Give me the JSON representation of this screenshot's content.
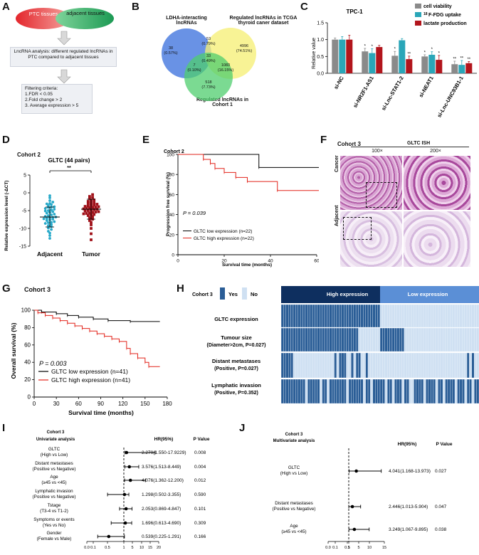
{
  "panels": {
    "A": "A",
    "B": "B",
    "C": "C",
    "D": "D",
    "E": "E",
    "F": "F",
    "G": "G",
    "H": "H",
    "I": "I",
    "J": "J"
  },
  "A": {
    "ptc": "PTC tissues",
    "adjacent": "adjacent tissues",
    "analysis": "LncRNA analysis: different regulated lncRNAs in PTC compared to adjacent tissues",
    "criteria_title": "Filtering criteria:",
    "criteria": [
      "1.FDR < 0.05",
      "2.Fold change > 2",
      "3. Average expression > 5"
    ]
  },
  "B": {
    "set1": "LDHA-interacting lncRNAs",
    "set2": "Regulated lncRNAs in TCGA thyroid caner dataset",
    "set3": "Regulated lncRNAs in Cohort 1",
    "regions": [
      {
        "n": "38",
        "p": "(0.57%)"
      },
      {
        "n": "53",
        "p": "(0.79%)"
      },
      {
        "n": "4996",
        "p": "(74.51%)"
      },
      {
        "n": "33",
        "p": "(0.49%)"
      },
      {
        "n": "7",
        "p": "(0.10%)"
      },
      {
        "n": "1083",
        "p": "(16.15%)"
      },
      {
        "n": "518",
        "p": "(7.73%)"
      }
    ]
  },
  "C": {
    "title": "TPC-1",
    "ylabel": "Relative value",
    "legend": [
      "cell viability",
      "F-FDG uptake",
      "lactate production"
    ],
    "legend_sup": "18",
    "colors": [
      "#8a8a8a",
      "#2aa6b8",
      "#b2151c"
    ],
    "chart_data": {
      "type": "bar",
      "title": "TPC-1",
      "ylabel": "Relative value",
      "ylim": [
        0,
        1.5
      ],
      "yticks": [
        "0.0",
        "0.5",
        "1.0",
        "1.5"
      ],
      "categories": [
        "si-NC",
        "si-NR2F1-AS1",
        "si-Lnc-STAT1-2",
        "si-NEAT1",
        "si-Lnc-UNC93B1-1"
      ],
      "series": [
        {
          "name": "cell viability",
          "values": [
            1.0,
            0.65,
            0.52,
            0.5,
            0.27
          ]
        },
        {
          "name": "18F-FDG uptake",
          "values": [
            1.0,
            0.6,
            0.98,
            0.55,
            0.25
          ]
        },
        {
          "name": "lactate production",
          "values": [
            1.0,
            0.78,
            0.42,
            0.4,
            0.3
          ]
        }
      ],
      "sig": [
        [
          "",
          "",
          ""
        ],
        [
          "*",
          "*",
          ""
        ],
        [
          "*",
          "",
          "**"
        ],
        [
          "*",
          "*",
          "*"
        ],
        [
          "**",
          "**",
          "**"
        ]
      ]
    }
  },
  "D": {
    "cohort": "Cohort 2",
    "title": "GLTC (44 pairs)",
    "sig": "**",
    "ylabel": "Relative expression level (-ΔCT)",
    "chart_data": {
      "type": "scatter",
      "ylim": [
        -15,
        5
      ],
      "yticks": [
        "5",
        "0",
        "-5",
        "-10",
        "-15"
      ],
      "categories": [
        "Adjacent",
        "Tumor"
      ],
      "means": [
        -6.8,
        -4.6
      ],
      "adjacent": [
        -0.8,
        -1.4,
        -2.2,
        -2.6,
        -3.0,
        -3.3,
        -3.6,
        -3.9,
        -4.1,
        -4.4,
        -4.6,
        -4.8,
        -5.0,
        -5.3,
        -5.5,
        -5.7,
        -6.0,
        -6.2,
        -6.4,
        -6.6,
        -6.8,
        -7.0,
        -7.2,
        -7.4,
        -7.6,
        -7.8,
        -8.1,
        -8.3,
        -8.6,
        -8.9,
        -9.2,
        -9.5,
        -9.9,
        -10.3,
        -10.8,
        -11.3,
        -12.0,
        -12.8,
        -5.1,
        -6.9,
        -7.3,
        -8.4,
        -4.0,
        -3.1
      ],
      "tumor": [
        -0.5,
        -1.0,
        -1.6,
        -2.0,
        -2.4,
        -2.7,
        -3.0,
        -3.2,
        -3.5,
        -3.7,
        -3.9,
        -4.1,
        -4.3,
        -4.5,
        -4.7,
        -4.9,
        -5.1,
        -5.3,
        -5.5,
        -5.7,
        -5.9,
        -6.1,
        -6.4,
        -6.7,
        -7.0,
        -7.4,
        -7.8,
        -8.3,
        -9.0,
        -10.0,
        -11.5,
        -13.2,
        -2.9,
        -3.4,
        -3.8,
        -4.2,
        -4.6,
        -5.0,
        -5.4,
        -5.8,
        -6.2,
        -1.3,
        -2.2,
        -4.0
      ]
    }
  },
  "E": {
    "cohort": "Cohort 2",
    "ylabel": "Progression free survival (%)",
    "xlabel": "Survival time (months)",
    "pvalue": "P = 0.039",
    "legend": [
      "GLTC low expression (n=22)",
      "GLTC high expression (n=22)"
    ],
    "chart_data": {
      "type": "line",
      "xlim": [
        0,
        60
      ],
      "ylim": [
        0,
        100
      ],
      "xticks": [
        "0",
        "20",
        "40",
        "60"
      ],
      "yticks": [
        "0",
        "20",
        "40",
        "60",
        "80",
        "100"
      ],
      "series": [
        {
          "name": "GLTC low expression (n=22)",
          "x": [
            0,
            35,
            35,
            63
          ],
          "y": [
            100,
            100,
            87,
            87
          ]
        },
        {
          "name": "GLTC high expression (n=22)",
          "x": [
            0,
            11,
            11,
            14,
            14,
            16,
            16,
            20,
            20,
            25,
            25,
            30,
            30,
            43,
            43,
            65
          ],
          "y": [
            100,
            100,
            95,
            95,
            91,
            91,
            86,
            86,
            82,
            82,
            77,
            77,
            73,
            73,
            64,
            64
          ]
        }
      ]
    }
  },
  "F": {
    "cohort": "Cohort 3",
    "title": "GLTC ISH",
    "mag": [
      "100×",
      "200×"
    ],
    "rows": [
      "Cancer",
      "Adjacent"
    ]
  },
  "G": {
    "cohort": "Cohort 3",
    "ylabel": "Overall survival (%)",
    "xlabel": "Survival time (months)",
    "pvalue": "P = 0.003",
    "legend": [
      "GLTC low expression (n=41)",
      "GLTC high expression (n=41)"
    ],
    "chart_data": {
      "type": "line",
      "xlim": [
        0,
        180
      ],
      "ylim": [
        0,
        100
      ],
      "xticks": [
        "0",
        "30",
        "60",
        "90",
        "120",
        "150",
        "180"
      ],
      "yticks": [
        "0",
        "20",
        "40",
        "60",
        "80",
        "100"
      ],
      "series": [
        {
          "name": "GLTC low expression (n=41)",
          "x": [
            0,
            10,
            10,
            30,
            30,
            45,
            45,
            60,
            60,
            80,
            80,
            100,
            100,
            130,
            130,
            170
          ],
          "y": [
            100,
            100,
            98,
            98,
            96,
            96,
            94,
            94,
            92,
            92,
            90,
            90,
            88,
            88,
            87,
            87
          ]
        },
        {
          "name": "GLTC high expression (n=41)",
          "x": [
            0,
            5,
            5,
            15,
            15,
            25,
            25,
            35,
            35,
            45,
            45,
            55,
            55,
            65,
            65,
            75,
            75,
            85,
            85,
            95,
            95,
            105,
            105,
            115,
            115,
            125,
            125,
            130,
            130,
            140,
            140,
            150,
            150,
            155,
            155,
            170
          ],
          "y": [
            100,
            100,
            97,
            97,
            94,
            94,
            91,
            91,
            88,
            88,
            85,
            85,
            82,
            82,
            79,
            79,
            76,
            76,
            73,
            73,
            70,
            70,
            67,
            67,
            64,
            64,
            56,
            56,
            50,
            50,
            45,
            45,
            40,
            40,
            35,
            35
          ]
        }
      ]
    }
  },
  "H": {
    "cohort": "Cohort 3",
    "yes": "Yes",
    "no": "No",
    "groups": [
      "High expression",
      "Low expression"
    ],
    "colors": {
      "high": "#0e2f5f",
      "low": "#5b8fd6",
      "yes": "#2a5d96",
      "no": "#cfe0f2"
    },
    "rows": [
      {
        "label": "GLTC expression",
        "sub": ""
      },
      {
        "label": "Tumour size",
        "sub": "(Diameter>2cm, P=0.027)"
      },
      {
        "label": "Distant metastases",
        "sub": "(Positive, P=0.027)"
      },
      {
        "label": "Lymphatic invasion",
        "sub": "(Positive, P=0.352)"
      }
    ],
    "chart_data": {
      "type": "heatmap",
      "n_high": 41,
      "n_low": 41,
      "tumour_size_yes": [
        1,
        1,
        1,
        1,
        1,
        1,
        1,
        1,
        1,
        1,
        1,
        1,
        1,
        1,
        1,
        1,
        1,
        1,
        1,
        1,
        1,
        1,
        1,
        1,
        1,
        1,
        1,
        1,
        1,
        1,
        1,
        1,
        0,
        0,
        0,
        0,
        0,
        0,
        0,
        0,
        0,
        1,
        1,
        1,
        1,
        1,
        1,
        1,
        1,
        1,
        1,
        0,
        0,
        0,
        0,
        0,
        0,
        0,
        0,
        0,
        0,
        0,
        0,
        0,
        0,
        0,
        0,
        0,
        0,
        0,
        0,
        0,
        0,
        0,
        0,
        0,
        0,
        0,
        0,
        0,
        0,
        0
      ],
      "distant_yes": [
        1,
        1,
        1,
        1,
        1,
        0,
        0,
        0,
        0,
        0,
        0,
        0,
        0,
        0,
        0,
        0,
        0,
        0,
        0,
        0,
        0,
        0,
        1,
        0,
        1,
        1,
        1,
        0,
        0,
        1,
        0,
        1,
        1,
        0,
        0,
        1,
        0,
        0,
        0,
        0,
        0,
        0,
        0,
        0,
        0,
        0,
        0,
        0,
        0,
        0,
        0,
        0,
        0,
        0,
        0,
        0,
        0,
        0,
        0,
        0,
        0,
        0,
        0,
        0,
        0,
        0,
        0,
        0,
        0,
        0,
        0,
        0,
        0,
        0,
        0,
        0,
        0,
        1,
        0,
        1,
        0,
        0
      ],
      "lymph_yes": [
        1,
        1,
        1,
        1,
        1,
        1,
        1,
        1,
        1,
        1,
        0,
        1,
        1,
        1,
        1,
        1,
        0,
        1,
        1,
        0,
        1,
        1,
        1,
        1,
        1,
        1,
        1,
        0,
        1,
        1,
        1,
        1,
        1,
        1,
        0,
        1,
        1,
        0,
        1,
        1,
        1,
        1,
        1,
        0,
        1,
        1,
        0,
        1,
        1,
        1,
        0,
        1,
        1,
        0,
        0,
        1,
        1,
        1,
        1,
        0,
        1,
        1,
        1,
        1,
        0,
        1,
        1,
        0,
        1,
        1,
        1,
        1,
        0,
        1,
        1,
        1,
        0,
        1,
        1,
        0,
        1,
        1
      ]
    }
  },
  "I": {
    "cohort": "Cohort 3",
    "sub": "Univariate analysis",
    "hr_head": "HR(95%)",
    "p_head": "P Value",
    "chart_data": {
      "type": "forest",
      "xticks": [
        "0.0",
        "0.1",
        "0.5",
        "1",
        "5",
        "10",
        "15",
        "20"
      ],
      "rows": [
        {
          "label": "GLTC",
          "sub": "(High vs Low)",
          "hr": 2.27,
          "lo": 1.55,
          "hi": 17.9229,
          "text": "2.270(1.550-17.9229)",
          "p": "0.008"
        },
        {
          "label": "Distant metastases",
          "sub": "(Positive vs Negative)",
          "hr": 3.576,
          "lo": 1.513,
          "hi": 8.449,
          "text": "3.576(1.513-8.449)",
          "p": "0.004"
        },
        {
          "label": "Age",
          "sub": "(≥45 vs <45)",
          "hr": 4.076,
          "lo": 1.362,
          "hi": 12.2,
          "text": "4.076(1.362-12.200)",
          "p": "0.012"
        },
        {
          "label": "Lymphatic invasion",
          "sub": "(Positive vs Negative)",
          "hr": 1.298,
          "lo": 0.502,
          "hi": 3.355,
          "text": "1.298(0.502-3.355)",
          "p": "0.590"
        },
        {
          "label": "Tstage",
          "sub": "(T3-4 vs T1-2)",
          "hr": 2.053,
          "lo": 0.869,
          "hi": 4.847,
          "text": "2.053(0.869-4.847)",
          "p": "0.101"
        },
        {
          "label": "Symptoms or events",
          "sub": "(Yes vs No)",
          "hr": 1.696,
          "lo": 0.613,
          "hi": 4.69,
          "text": "1.696(0.613-4.690)",
          "p": "0.309"
        },
        {
          "label": "Gender",
          "sub": "(Female vs Male)",
          "hr": 0.539,
          "lo": 0.225,
          "hi": 1.291,
          "text": "0.539(0.225-1.291)",
          "p": "0.166"
        }
      ]
    }
  },
  "J": {
    "cohort": "Cohort 3",
    "sub": "Multivariate analysis",
    "hr_head": "HR(95%)",
    "p_head": "P Value",
    "chart_data": {
      "type": "forest",
      "xticks": [
        "0.0",
        "0.1",
        "0.5",
        "1",
        "5",
        "10",
        "15"
      ],
      "rows": [
        {
          "label": "GLTC",
          "sub": "(High vs Low)",
          "hr": 4.041,
          "lo": 1.168,
          "hi": 13.973,
          "text": "4.041(1.168-13.973)",
          "p": "0.027"
        },
        {
          "label": "Distant metastases",
          "sub": "(Positive vs Negative)",
          "hr": 2.446,
          "lo": 1.013,
          "hi": 5.904,
          "text": "2.446(1.013-5.904)",
          "p": "0.047"
        },
        {
          "label": "Age",
          "sub": "(≥45 vs <45)",
          "hr": 3.249,
          "lo": 1.067,
          "hi": 9.895,
          "text": "3.249(1.067-9.895)",
          "p": "0.038"
        }
      ]
    }
  }
}
